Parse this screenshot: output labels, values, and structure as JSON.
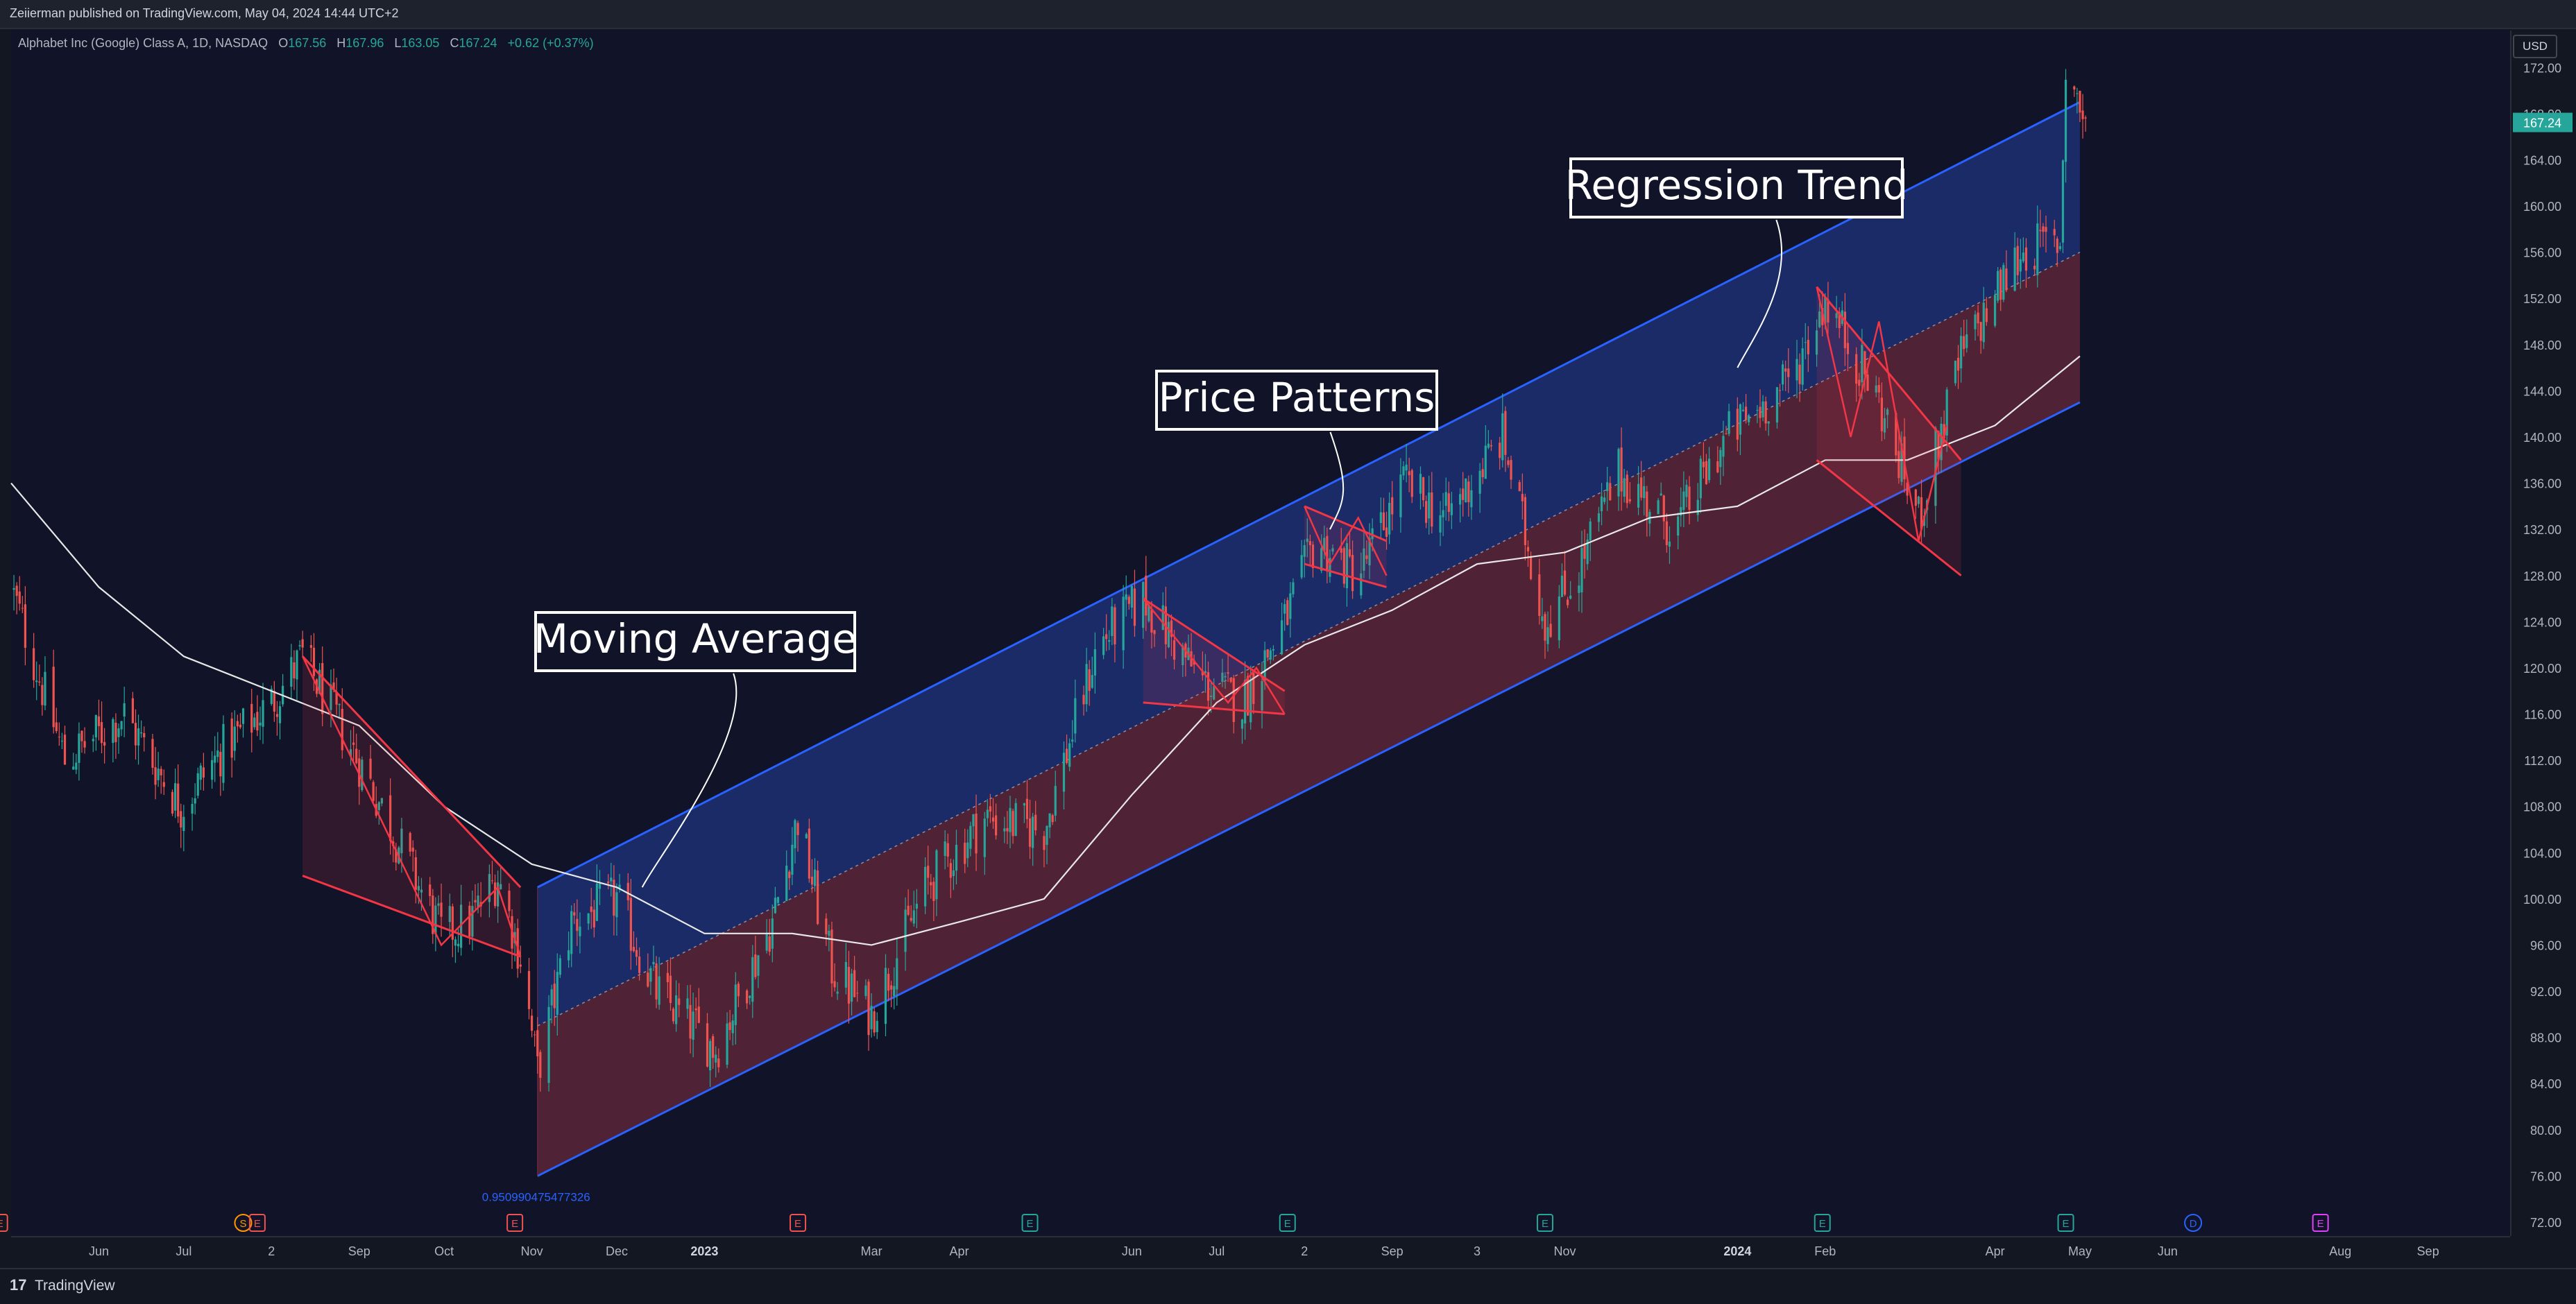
{
  "header": {
    "published": "Zeiierman published on TradingView.com, May 04, 2024 14:44 UTC+2"
  },
  "legend": {
    "symbol": "Alphabet Inc (Google) Class A, 1D, NASDAQ",
    "o_label": "O",
    "o_value": "167.56",
    "h_label": "H",
    "h_value": "167.96",
    "l_label": "L",
    "l_value": "163.05",
    "c_label": "C",
    "c_value": "167.24",
    "change": "+0.62 (+0.37%)"
  },
  "price_axis": {
    "currency": "USD",
    "last_price": "167.24",
    "last_color": "#26a69a",
    "partially_hidden_label": "168.00"
  },
  "footer": {
    "logo": "17",
    "brand": "TradingView"
  },
  "colors": {
    "up": "#26a69a",
    "down": "#ef5350",
    "channel_line": "#2962ff",
    "upper_fill": "#1c2f72",
    "lower_fill": "#5a2438",
    "ma": "#e8e8e8",
    "pattern": "#f23645"
  },
  "chart_data": {
    "type": "candlestick",
    "title": "Alphabet Inc (Google) Class A, 1D, NASDAQ",
    "yticks": [
      72,
      76,
      80,
      84,
      88,
      92,
      96,
      100,
      104,
      108,
      112,
      116,
      120,
      124,
      128,
      132,
      136,
      140,
      144,
      148,
      152,
      156,
      160,
      164,
      168,
      172
    ],
    "ylim": [
      72,
      174
    ],
    "xtick_labels": [
      "Jun",
      "Jul",
      "2",
      "Sep",
      "Oct",
      "Nov",
      "Dec",
      "2023",
      "Mar",
      "Apr",
      "Jun",
      "Jul",
      "2",
      "Sep",
      "3",
      "Nov",
      "2024",
      "Feb",
      "Apr",
      "May",
      "Jun",
      "Aug",
      "Sep"
    ],
    "xtick_dates": [
      "2022-06-01",
      "2022-07-01",
      "2022-08-01",
      "2022-09-01",
      "2022-10-01",
      "2022-11-01",
      "2022-12-01",
      "2023-01-01",
      "2023-03-01",
      "2023-04-01",
      "2023-06-01",
      "2023-07-01",
      "2023-08-01",
      "2023-09-01",
      "2023-10-01",
      "2023-11-01",
      "2024-01-01",
      "2024-02-01",
      "2024-04-01",
      "2024-05-01",
      "2024-06-01",
      "2024-08-01",
      "2024-09-01"
    ],
    "xlim": [
      "2022-05-01",
      "2024-09-30"
    ],
    "price_path": [
      {
        "date": "2022-05-01",
        "price": 127
      },
      {
        "date": "2022-05-20",
        "price": 112
      },
      {
        "date": "2022-06-10",
        "price": 116
      },
      {
        "date": "2022-06-30",
        "price": 108
      },
      {
        "date": "2022-07-15",
        "price": 113
      },
      {
        "date": "2022-08-01",
        "price": 117
      },
      {
        "date": "2022-08-12",
        "price": 121
      },
      {
        "date": "2022-09-05",
        "price": 110
      },
      {
        "date": "2022-09-30",
        "price": 97
      },
      {
        "date": "2022-10-10",
        "price": 98
      },
      {
        "date": "2022-10-20",
        "price": 102
      },
      {
        "date": "2022-10-28",
        "price": 95
      },
      {
        "date": "2022-11-03",
        "price": 85
      },
      {
        "date": "2022-11-15",
        "price": 98
      },
      {
        "date": "2022-12-01",
        "price": 100
      },
      {
        "date": "2022-12-15",
        "price": 92
      },
      {
        "date": "2023-01-05",
        "price": 87
      },
      {
        "date": "2023-01-25",
        "price": 98
      },
      {
        "date": "2023-02-03",
        "price": 107
      },
      {
        "date": "2023-02-15",
        "price": 94
      },
      {
        "date": "2023-03-01",
        "price": 90
      },
      {
        "date": "2023-03-20",
        "price": 101
      },
      {
        "date": "2023-04-10",
        "price": 107
      },
      {
        "date": "2023-05-01",
        "price": 106
      },
      {
        "date": "2023-05-20",
        "price": 122
      },
      {
        "date": "2023-06-05",
        "price": 126
      },
      {
        "date": "2023-06-25",
        "price": 119
      },
      {
        "date": "2023-07-10",
        "price": 117
      },
      {
        "date": "2023-07-25",
        "price": 124
      },
      {
        "date": "2023-08-05",
        "price": 131
      },
      {
        "date": "2023-08-20",
        "price": 128
      },
      {
        "date": "2023-09-05",
        "price": 136
      },
      {
        "date": "2023-09-20",
        "price": 133
      },
      {
        "date": "2023-10-10",
        "price": 140
      },
      {
        "date": "2023-10-25",
        "price": 124
      },
      {
        "date": "2023-11-05",
        "price": 128
      },
      {
        "date": "2023-11-20",
        "price": 137
      },
      {
        "date": "2023-12-10",
        "price": 132
      },
      {
        "date": "2023-12-28",
        "price": 140
      },
      {
        "date": "2024-01-20",
        "price": 145
      },
      {
        "date": "2024-02-01",
        "price": 152
      },
      {
        "date": "2024-02-20",
        "price": 143
      },
      {
        "date": "2024-03-05",
        "price": 133
      },
      {
        "date": "2024-03-20",
        "price": 147
      },
      {
        "date": "2024-04-10",
        "price": 156
      },
      {
        "date": "2024-04-24",
        "price": 157
      },
      {
        "date": "2024-04-26",
        "price": 172
      },
      {
        "date": "2024-05-03",
        "price": 167.24
      }
    ],
    "moving_average": [
      {
        "date": "2022-05-01",
        "value": 136
      },
      {
        "date": "2022-06-01",
        "value": 127
      },
      {
        "date": "2022-07-01",
        "value": 121
      },
      {
        "date": "2022-08-01",
        "value": 118
      },
      {
        "date": "2022-09-01",
        "value": 115
      },
      {
        "date": "2022-10-01",
        "value": 108
      },
      {
        "date": "2022-11-01",
        "value": 103
      },
      {
        "date": "2022-12-01",
        "value": 101
      },
      {
        "date": "2023-01-01",
        "value": 97
      },
      {
        "date": "2023-02-01",
        "value": 97
      },
      {
        "date": "2023-03-01",
        "value": 96
      },
      {
        "date": "2023-04-01",
        "value": 98
      },
      {
        "date": "2023-05-01",
        "value": 100
      },
      {
        "date": "2023-06-01",
        "value": 109
      },
      {
        "date": "2023-07-01",
        "value": 117
      },
      {
        "date": "2023-08-01",
        "value": 122
      },
      {
        "date": "2023-09-01",
        "value": 125
      },
      {
        "date": "2023-10-01",
        "value": 129
      },
      {
        "date": "2023-11-01",
        "value": 130
      },
      {
        "date": "2023-12-01",
        "value": 133
      },
      {
        "date": "2024-01-01",
        "value": 134
      },
      {
        "date": "2024-02-01",
        "value": 138
      },
      {
        "date": "2024-03-01",
        "value": 138
      },
      {
        "date": "2024-04-01",
        "value": 141
      },
      {
        "date": "2024-05-01",
        "value": 147
      }
    ],
    "regression_channel": {
      "start_date": "2022-11-03",
      "end_date": "2024-05-01",
      "upper": [
        101,
        169
      ],
      "mid": [
        89,
        156
      ],
      "lower": [
        76,
        143
      ],
      "r_label": "0.950990475477326"
    },
    "patterns": [
      {
        "points": [
          [
            "2022-08-12",
            121
          ],
          [
            "2022-09-30",
            96
          ],
          [
            "2022-10-20",
            101
          ],
          [
            "2022-10-28",
            95
          ]
        ],
        "lines": [
          [
            [
              "2022-08-12",
              121
            ],
            [
              "2022-10-28",
              101
            ]
          ],
          [
            [
              "2022-08-12",
              102
            ],
            [
              "2022-10-28",
              95
            ]
          ]
        ]
      },
      {
        "points": [
          [
            "2023-06-05",
            126
          ],
          [
            "2023-07-05",
            117
          ],
          [
            "2023-07-15",
            120
          ],
          [
            "2023-07-25",
            116
          ]
        ],
        "lines": [
          [
            [
              "2023-06-05",
              126
            ],
            [
              "2023-07-25",
              118
            ]
          ],
          [
            [
              "2023-06-05",
              117
            ],
            [
              "2023-07-25",
              116
            ]
          ]
        ]
      },
      {
        "points": [
          [
            "2023-08-01",
            134
          ],
          [
            "2023-08-10",
            129
          ],
          [
            "2023-08-20",
            133
          ],
          [
            "2023-08-30",
            128
          ]
        ],
        "lines": [
          [
            [
              "2023-08-01",
              134
            ],
            [
              "2023-08-30",
              131
            ]
          ],
          [
            [
              "2023-08-01",
              129
            ],
            [
              "2023-08-30",
              127
            ]
          ]
        ]
      },
      {
        "points": [
          [
            "2024-01-29",
            153
          ],
          [
            "2024-02-10",
            140
          ],
          [
            "2024-02-20",
            150
          ],
          [
            "2024-03-05",
            131
          ],
          [
            "2024-03-15",
            141
          ]
        ],
        "lines": [
          [
            [
              "2024-01-29",
              153
            ],
            [
              "2024-03-20",
              138
            ]
          ],
          [
            [
              "2024-01-29",
              138
            ],
            [
              "2024-03-20",
              128
            ]
          ]
        ]
      }
    ],
    "annotations": [
      {
        "text": "Moving Average",
        "anchor": [
          "2022-12-10",
          101
        ]
      },
      {
        "text": "Price Patterns",
        "anchor": [
          "2023-08-10",
          132
        ]
      },
      {
        "text": "Regression Trend",
        "anchor": [
          "2024-01-01",
          146
        ]
      }
    ],
    "events": [
      {
        "date": "2022-04-27",
        "label": "E",
        "color": "#ef5350"
      },
      {
        "date": "2022-07-22",
        "label": "S",
        "color": "#ff9800"
      },
      {
        "date": "2022-07-27",
        "label": "E",
        "color": "#ef5350"
      },
      {
        "date": "2022-10-26",
        "label": "E",
        "color": "#ef5350"
      },
      {
        "date": "2023-02-03",
        "label": "E",
        "color": "#ef5350"
      },
      {
        "date": "2023-04-26",
        "label": "E",
        "color": "#26a69a"
      },
      {
        "date": "2023-07-26",
        "label": "E",
        "color": "#26a69a"
      },
      {
        "date": "2023-10-25",
        "label": "E",
        "color": "#26a69a"
      },
      {
        "date": "2024-01-31",
        "label": "E",
        "color": "#26a69a"
      },
      {
        "date": "2024-04-26",
        "label": "E",
        "color": "#26a69a"
      },
      {
        "date": "2024-06-10",
        "label": "D",
        "color": "#2962ff"
      },
      {
        "date": "2024-07-25",
        "label": "E",
        "color": "#e040fb"
      }
    ]
  }
}
